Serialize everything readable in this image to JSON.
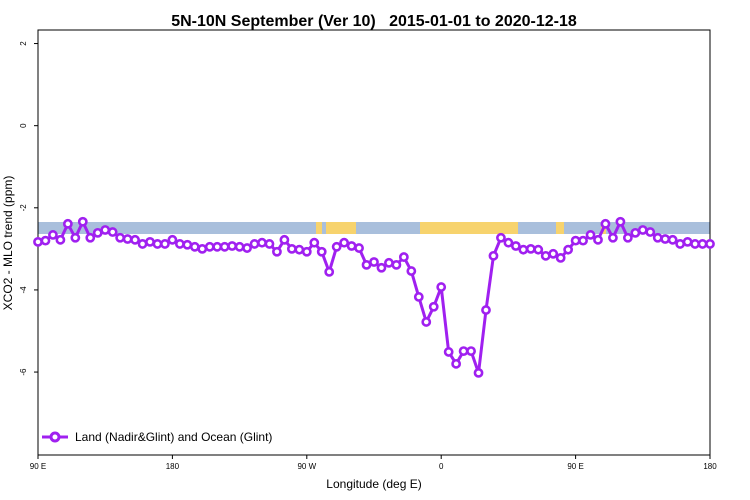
{
  "chart_data": {
    "type": "line",
    "title": "5N-10N September (Ver 10)   2015-01-01 to 2020-12-18",
    "x_label": "Longitude (deg E)",
    "y_label": "XCO2 - MLO trend (ppm)",
    "xlim": [
      90,
      540
    ],
    "ylim": [
      -8.02,
      2.33
    ],
    "xticks": [
      {
        "value": 90,
        "label": "90 E"
      },
      {
        "value": 180,
        "label": "180"
      },
      {
        "value": 270,
        "label": "90 W"
      },
      {
        "value": 360,
        "label": "0"
      },
      {
        "value": 450,
        "label": "90 E"
      },
      {
        "value": 540,
        "label": "180"
      }
    ],
    "yticks": [
      2,
      0,
      -2,
      -4,
      -6
    ],
    "x": [
      90,
      95,
      100,
      105,
      110,
      115,
      120,
      125,
      130,
      135,
      140,
      145,
      150,
      155,
      160,
      165,
      170,
      175,
      180,
      185,
      190,
      195,
      200,
      205,
      210,
      215,
      220,
      225,
      230,
      235,
      240,
      245,
      250,
      255,
      260,
      265,
      270,
      275,
      280,
      285,
      290,
      295,
      300,
      305,
      310,
      315,
      320,
      325,
      330,
      335,
      340,
      345,
      350,
      355,
      360,
      365,
      370,
      375,
      380,
      385,
      390,
      395,
      400,
      405,
      410,
      415,
      420,
      425,
      430,
      435,
      440,
      445,
      450,
      455,
      460,
      465,
      470,
      475,
      480,
      485,
      490,
      495,
      500,
      505,
      510,
      515,
      520,
      525,
      530,
      535,
      540
    ],
    "series": [
      {
        "name": "Land (Nadir&Glint) and Ocean (Glint)",
        "color": "#a020f0",
        "values": [
          -2.83,
          -2.8,
          -2.66,
          -2.78,
          -2.39,
          -2.73,
          -2.34,
          -2.73,
          -2.61,
          -2.54,
          -2.59,
          -2.73,
          -2.76,
          -2.78,
          -2.88,
          -2.83,
          -2.88,
          -2.88,
          -2.78,
          -2.88,
          -2.9,
          -2.95,
          -3.0,
          -2.95,
          -2.95,
          -2.95,
          -2.93,
          -2.95,
          -2.98,
          -2.88,
          -2.85,
          -2.88,
          -3.07,
          -2.78,
          -3.0,
          -3.02,
          -3.07,
          -2.85,
          -3.07,
          -3.56,
          -2.95,
          -2.85,
          -2.93,
          -2.98,
          -3.39,
          -3.32,
          -3.46,
          -3.34,
          -3.39,
          -3.2,
          -3.54,
          -4.17,
          -4.78,
          -4.41,
          -3.93,
          -5.51,
          -5.8,
          -5.49,
          -5.49,
          -6.02,
          -4.49,
          -3.17,
          -2.73,
          -2.85,
          -2.93,
          -3.02,
          -3.0,
          -3.02,
          -3.17,
          -3.12,
          -3.22,
          -3.02,
          -2.8,
          -2.8,
          -2.66,
          -2.78,
          -2.39,
          -2.73,
          -2.34,
          -2.73,
          -2.61,
          -2.54,
          -2.59,
          -2.73,
          -2.76,
          -2.78,
          -2.88,
          -2.83,
          -2.88,
          -2.88,
          -2.88
        ]
      }
    ]
  }
}
